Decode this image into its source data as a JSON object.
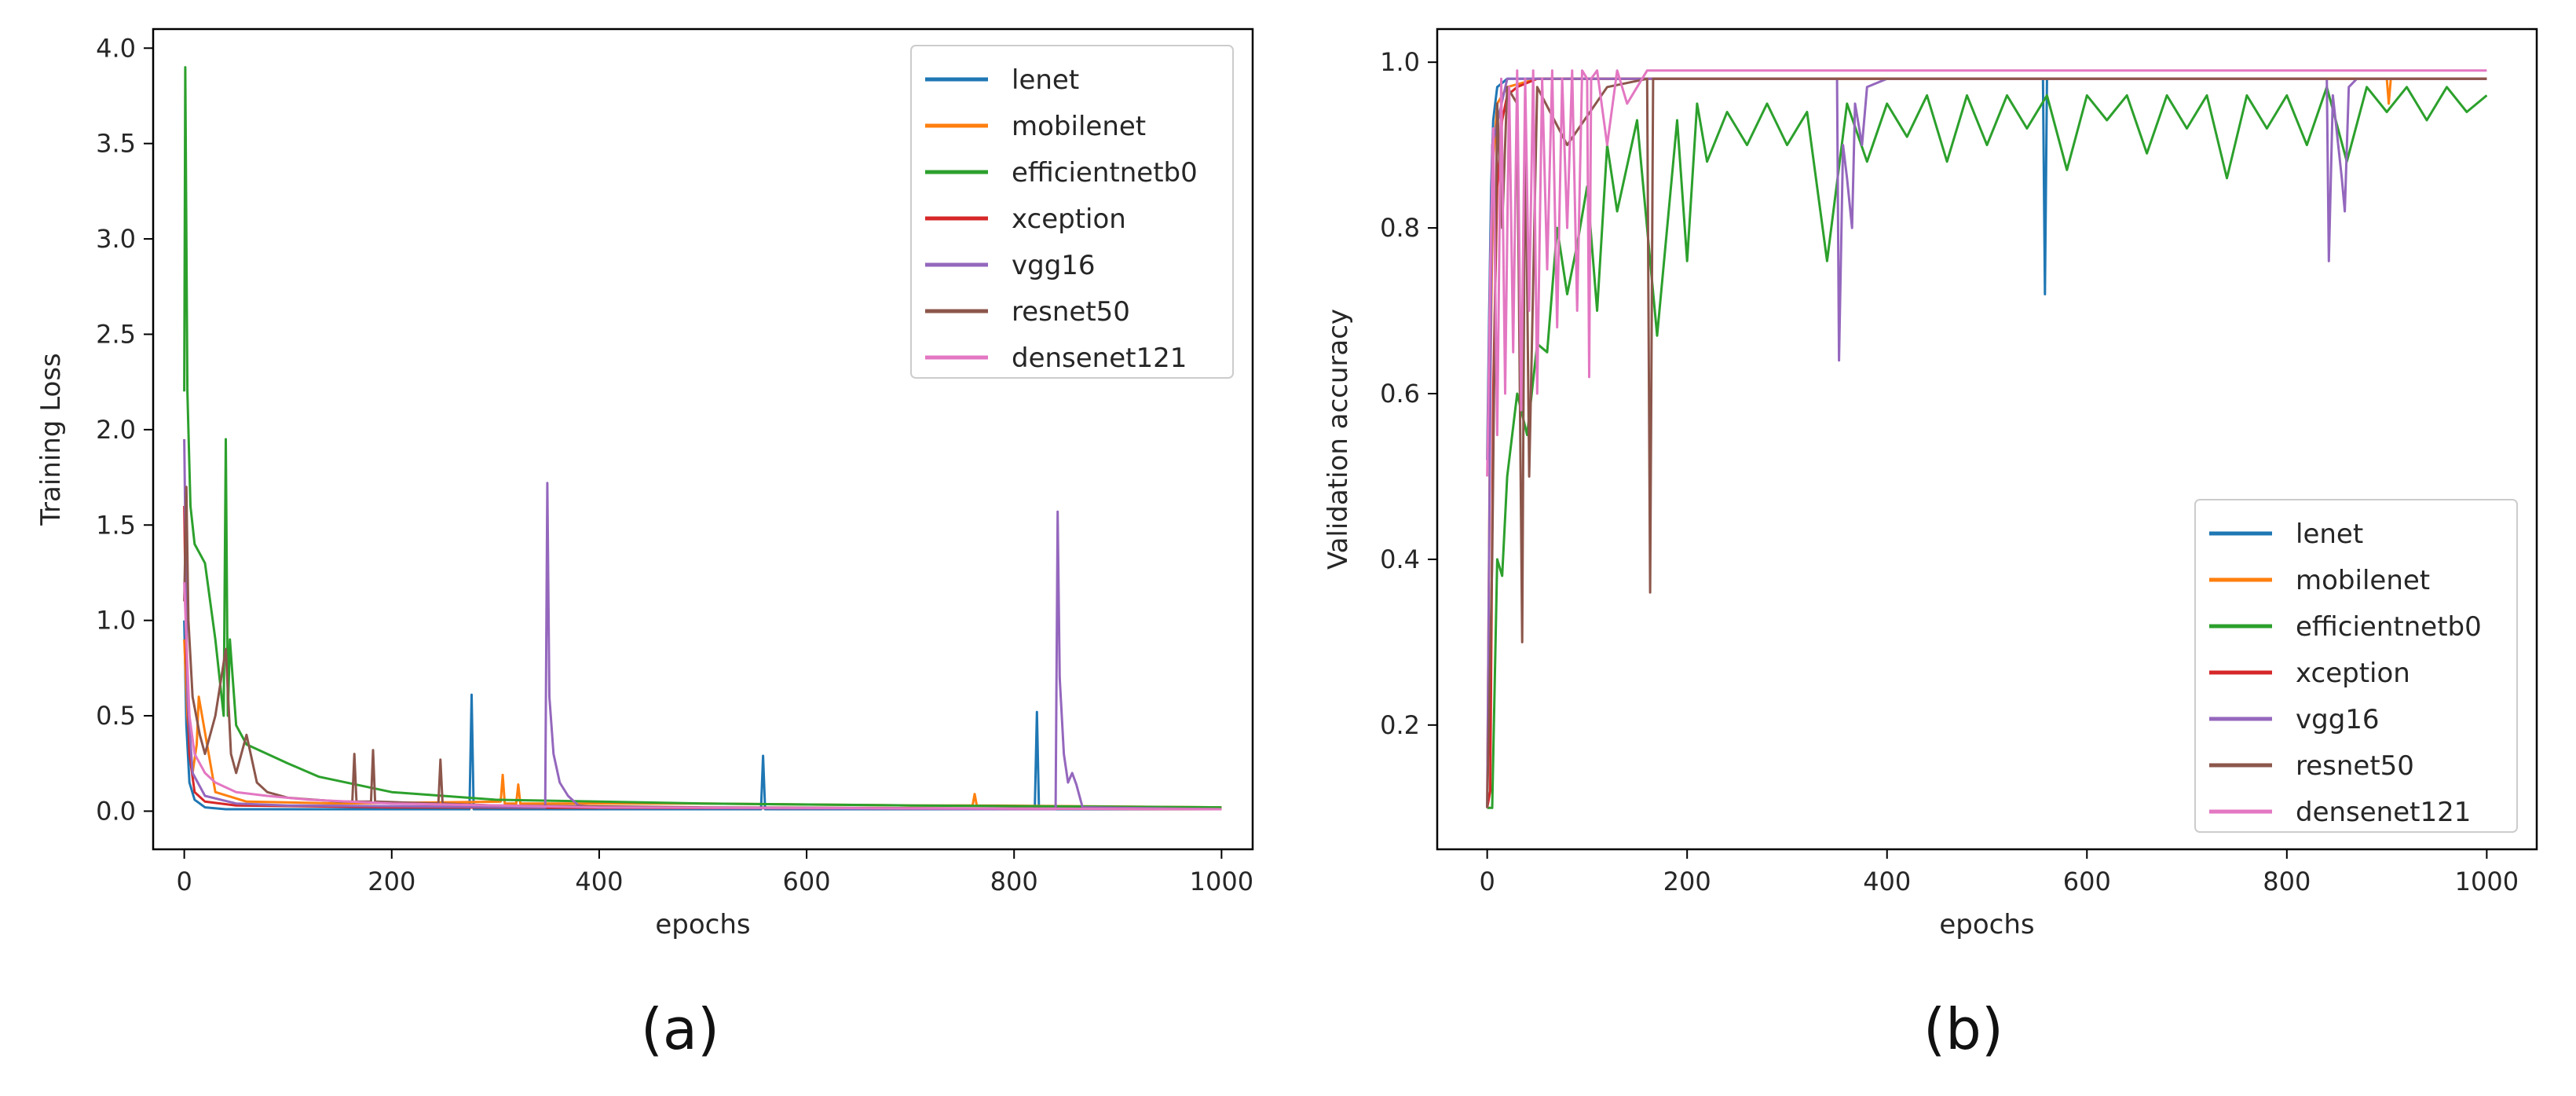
{
  "chart_data": [
    {
      "type": "line",
      "panel_label": "(a)",
      "xlabel": "epochs",
      "ylabel": "Training Loss",
      "xlim": [
        -30,
        1030
      ],
      "ylim": [
        -0.2,
        4.1
      ],
      "xticks": [
        0,
        200,
        400,
        600,
        800,
        1000
      ],
      "yticks": [
        0.0,
        0.5,
        1.0,
        1.5,
        2.0,
        2.5,
        3.0,
        3.5,
        4.0
      ],
      "ytick_format": "fixed1",
      "legend_position": "top-right",
      "series": [
        {
          "name": "lenet",
          "color": "#1f77b4",
          "x": [
            0,
            2,
            5,
            10,
            20,
            40,
            100,
            275,
            277,
            279,
            300,
            556,
            558,
            560,
            820,
            822,
            824,
            1000
          ],
          "y": [
            1.0,
            0.45,
            0.15,
            0.06,
            0.02,
            0.01,
            0.01,
            0.01,
            0.61,
            0.01,
            0.01,
            0.01,
            0.29,
            0.01,
            0.01,
            0.52,
            0.01,
            0.01
          ]
        },
        {
          "name": "mobilenet",
          "color": "#ff7f0e",
          "x": [
            0,
            3,
            8,
            12,
            14,
            30,
            60,
            150,
            305,
            307,
            309,
            320,
            322,
            324,
            500,
            700,
            760,
            762,
            764,
            1000
          ],
          "y": [
            0.9,
            0.5,
            0.2,
            0.35,
            0.6,
            0.1,
            0.05,
            0.04,
            0.05,
            0.19,
            0.04,
            0.04,
            0.14,
            0.04,
            0.04,
            0.03,
            0.03,
            0.09,
            0.03,
            0.02
          ]
        },
        {
          "name": "efficientnetb0",
          "color": "#2ca02c",
          "x": [
            0,
            1,
            3,
            6,
            10,
            20,
            30,
            38,
            40,
            42,
            44,
            50,
            60,
            80,
            100,
            130,
            200,
            300,
            400,
            500,
            700,
            1000
          ],
          "y": [
            2.2,
            3.9,
            2.2,
            1.6,
            1.4,
            1.3,
            0.9,
            0.5,
            1.95,
            0.5,
            0.9,
            0.45,
            0.35,
            0.3,
            0.25,
            0.18,
            0.1,
            0.06,
            0.05,
            0.04,
            0.03,
            0.02
          ]
        },
        {
          "name": "xception",
          "color": "#d62728",
          "x": [
            0,
            2,
            5,
            10,
            20,
            50,
            200,
            1000
          ],
          "y": [
            1.6,
            0.8,
            0.3,
            0.1,
            0.05,
            0.03,
            0.02,
            0.01
          ]
        },
        {
          "name": "vgg16",
          "color": "#9467bd",
          "x": [
            0,
            3,
            8,
            20,
            50,
            100,
            348,
            350,
            352,
            356,
            362,
            370,
            380,
            400,
            800,
            840,
            842,
            844,
            848,
            852,
            856,
            860,
            866,
            1000
          ],
          "y": [
            1.95,
            0.6,
            0.2,
            0.08,
            0.04,
            0.03,
            0.02,
            1.72,
            0.6,
            0.3,
            0.15,
            0.08,
            0.03,
            0.02,
            0.01,
            0.01,
            1.57,
            0.7,
            0.3,
            0.15,
            0.2,
            0.14,
            0.02,
            0.01
          ]
        },
        {
          "name": "resnet50",
          "color": "#8c564b",
          "x": [
            0,
            2,
            4,
            8,
            15,
            20,
            30,
            40,
            45,
            50,
            60,
            70,
            80,
            100,
            150,
            162,
            164,
            166,
            180,
            182,
            184,
            245,
            247,
            249,
            300,
            500,
            1000
          ],
          "y": [
            1.1,
            1.7,
            1.0,
            0.6,
            0.4,
            0.3,
            0.5,
            0.85,
            0.3,
            0.2,
            0.4,
            0.15,
            0.1,
            0.07,
            0.05,
            0.05,
            0.3,
            0.05,
            0.05,
            0.32,
            0.05,
            0.04,
            0.27,
            0.04,
            0.03,
            0.02,
            0.01
          ]
        },
        {
          "name": "densenet121",
          "color": "#e377c2",
          "x": [
            0,
            2,
            5,
            10,
            20,
            30,
            50,
            80,
            120,
            200,
            400,
            1000
          ],
          "y": [
            1.2,
            0.9,
            0.5,
            0.3,
            0.2,
            0.15,
            0.1,
            0.08,
            0.06,
            0.04,
            0.02,
            0.01
          ]
        }
      ]
    },
    {
      "type": "line",
      "panel_label": "(b)",
      "xlabel": "epochs",
      "ylabel": "Validation accuracy",
      "xlim": [
        -50,
        1050
      ],
      "ylim": [
        0.05,
        1.04
      ],
      "xticks": [
        0,
        200,
        400,
        600,
        800,
        1000
      ],
      "yticks": [
        0.2,
        0.4,
        0.6,
        0.8,
        1.0
      ],
      "ytick_format": "fixed1",
      "legend_position": "lower-right",
      "series": [
        {
          "name": "lenet",
          "color": "#1f77b4",
          "x": [
            0,
            2,
            4,
            6,
            8,
            10,
            20,
            50,
            200,
            556,
            558,
            560,
            562,
            600,
            1000
          ],
          "y": [
            0.52,
            0.7,
            0.85,
            0.93,
            0.95,
            0.97,
            0.98,
            0.98,
            0.98,
            0.98,
            0.72,
            0.98,
            0.98,
            0.98,
            0.98
          ]
        },
        {
          "name": "mobilenet",
          "color": "#ff7f0e",
          "x": [
            0,
            3,
            6,
            10,
            20,
            50,
            200,
            500,
            900,
            902,
            904,
            1000
          ],
          "y": [
            0.1,
            0.6,
            0.88,
            0.95,
            0.97,
            0.98,
            0.98,
            0.98,
            0.98,
            0.95,
            0.98,
            0.98
          ]
        },
        {
          "name": "efficientnetb0",
          "color": "#2ca02c",
          "x": [
            0,
            5,
            10,
            15,
            20,
            30,
            40,
            50,
            60,
            70,
            80,
            90,
            100,
            110,
            120,
            130,
            150,
            170,
            190,
            200,
            210,
            220,
            240,
            260,
            280,
            300,
            320,
            340,
            360,
            380,
            400,
            420,
            440,
            460,
            480,
            500,
            520,
            540,
            560,
            580,
            600,
            620,
            640,
            660,
            680,
            700,
            720,
            740,
            760,
            780,
            800,
            820,
            840,
            860,
            880,
            900,
            920,
            940,
            960,
            980,
            1000
          ],
          "y": [
            0.1,
            0.1,
            0.4,
            0.38,
            0.5,
            0.6,
            0.55,
            0.66,
            0.65,
            0.8,
            0.72,
            0.78,
            0.85,
            0.7,
            0.9,
            0.82,
            0.93,
            0.67,
            0.93,
            0.76,
            0.95,
            0.88,
            0.94,
            0.9,
            0.95,
            0.9,
            0.94,
            0.76,
            0.95,
            0.88,
            0.95,
            0.91,
            0.96,
            0.88,
            0.96,
            0.9,
            0.96,
            0.92,
            0.96,
            0.87,
            0.96,
            0.93,
            0.96,
            0.89,
            0.96,
            0.92,
            0.96,
            0.86,
            0.96,
            0.92,
            0.96,
            0.9,
            0.97,
            0.88,
            0.97,
            0.94,
            0.97,
            0.93,
            0.97,
            0.94,
            0.96
          ]
        },
        {
          "name": "xception",
          "color": "#d62728",
          "x": [
            0,
            3,
            6,
            10,
            15,
            20,
            30,
            50,
            200,
            400,
            600,
            800,
            1000
          ],
          "y": [
            0.1,
            0.12,
            0.6,
            0.85,
            0.93,
            0.96,
            0.97,
            0.98,
            0.98,
            0.98,
            0.98,
            0.98,
            0.98
          ]
        },
        {
          "name": "vgg16",
          "color": "#9467bd",
          "x": [
            0,
            5,
            20,
            100,
            345,
            350,
            352,
            356,
            360,
            365,
            368,
            375,
            380,
            400,
            835,
            840,
            842,
            846,
            855,
            858,
            862,
            870,
            1000
          ],
          "y": [
            0.1,
            0.9,
            0.98,
            0.98,
            0.98,
            0.98,
            0.64,
            0.9,
            0.86,
            0.8,
            0.95,
            0.9,
            0.97,
            0.98,
            0.98,
            0.98,
            0.76,
            0.96,
            0.86,
            0.82,
            0.97,
            0.98,
            0.98
          ]
        },
        {
          "name": "resnet50",
          "color": "#8c564b",
          "x": [
            0,
            5,
            10,
            15,
            20,
            30,
            35,
            38,
            42,
            50,
            80,
            120,
            160,
            163,
            166,
            170,
            200,
            400,
            1000
          ],
          "y": [
            0.1,
            0.4,
            0.95,
            0.8,
            0.97,
            0.95,
            0.3,
            0.96,
            0.5,
            0.97,
            0.9,
            0.97,
            0.98,
            0.36,
            0.98,
            0.98,
            0.98,
            0.98,
            0.98
          ]
        },
        {
          "name": "densenet121",
          "color": "#e377c2",
          "x": [
            0,
            3,
            6,
            10,
            14,
            18,
            22,
            26,
            30,
            34,
            38,
            42,
            46,
            50,
            55,
            60,
            65,
            70,
            75,
            80,
            85,
            90,
            95,
            100,
            102,
            104,
            110,
            120,
            130,
            140,
            160,
            200,
            400,
            1000
          ],
          "y": [
            0.5,
            0.75,
            0.92,
            0.55,
            0.98,
            0.6,
            0.97,
            0.65,
            0.99,
            0.58,
            0.98,
            0.7,
            0.99,
            0.6,
            0.98,
            0.75,
            0.99,
            0.68,
            0.98,
            0.8,
            0.99,
            0.7,
            0.99,
            0.98,
            0.62,
            0.98,
            0.99,
            0.9,
            0.99,
            0.95,
            0.99,
            0.99,
            0.99,
            0.99
          ]
        }
      ]
    }
  ]
}
